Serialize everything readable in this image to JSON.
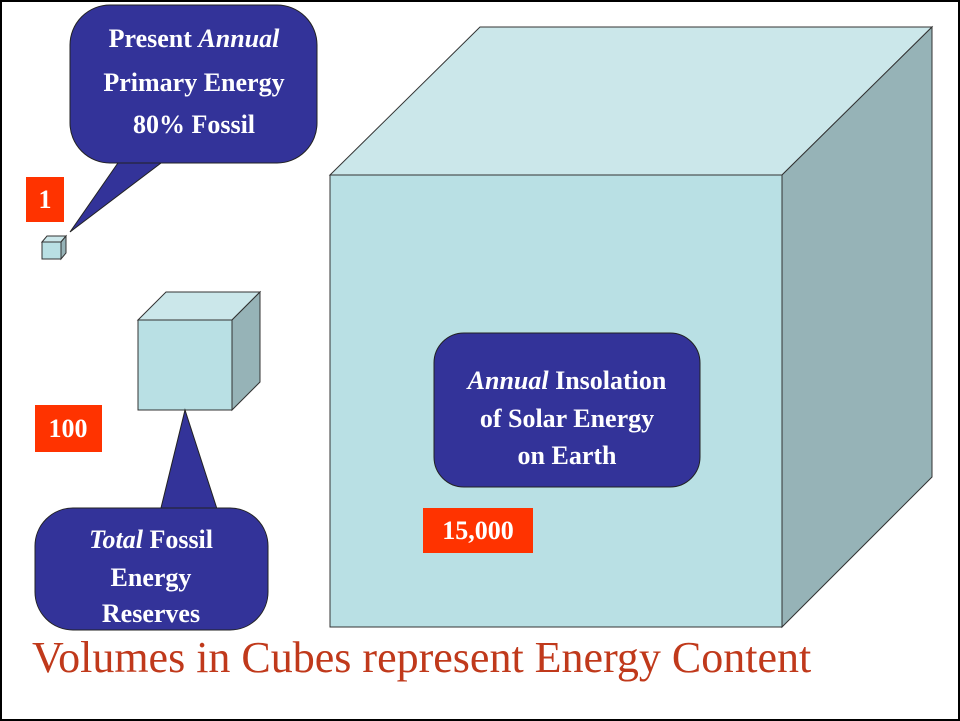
{
  "callouts": [
    {
      "lines": [
        [
          "Present",
          "Annual"
        ],
        "Primary Energy",
        "80% Fossil"
      ]
    },
    {
      "lines": [
        [
          "Total",
          "Fossil"
        ],
        "Energy",
        "Reserves"
      ]
    },
    {
      "lines": [
        [
          "Annual",
          "Insolation"
        ],
        "of Solar Energy",
        "on Earth"
      ]
    }
  ],
  "labels": [
    "1",
    "100",
    "15,000"
  ],
  "caption": "Volumes in Cubes represent Energy Content"
}
